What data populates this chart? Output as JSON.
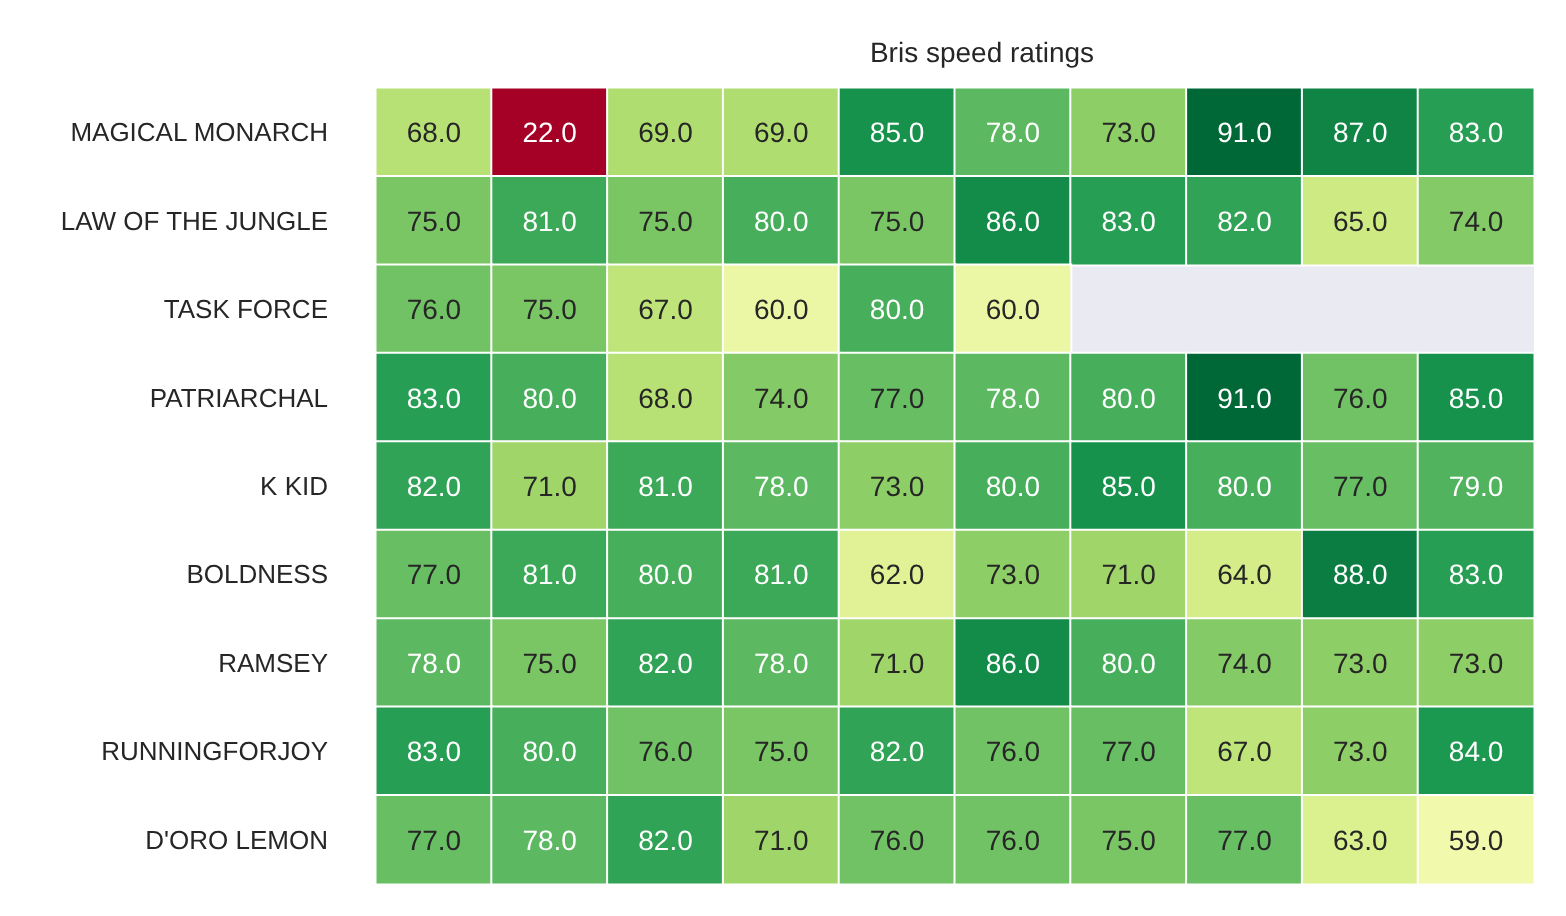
{
  "chart_data": {
    "type": "heatmap",
    "title": "Bris speed ratings",
    "categories": [
      null,
      null,
      null,
      null,
      null,
      null,
      null,
      null,
      null,
      null
    ],
    "y_categories": [
      "MAGICAL MONARCH",
      "LAW OF THE JUNGLE",
      "TASK FORCE",
      "PATRIARCHAL",
      "K KID",
      "BOLDNESS",
      "RAMSEY",
      "RUNNINGFORJOY",
      "D'ORO LEMON"
    ],
    "cells": [
      [
        68,
        22,
        69,
        69,
        85,
        78,
        73,
        91,
        87,
        83
      ],
      [
        75,
        81,
        75,
        80,
        75,
        86,
        83,
        82,
        65,
        74
      ],
      [
        76,
        75,
        67,
        60,
        80,
        60,
        null,
        null,
        null,
        null
      ],
      [
        83,
        80,
        68,
        74,
        77,
        78,
        80,
        91,
        76,
        85
      ],
      [
        82,
        71,
        81,
        78,
        73,
        80,
        85,
        80,
        77,
        79
      ],
      [
        77,
        81,
        80,
        81,
        62,
        73,
        71,
        64,
        88,
        83
      ],
      [
        78,
        75,
        82,
        78,
        71,
        86,
        80,
        74,
        73,
        73
      ],
      [
        83,
        80,
        76,
        75,
        82,
        76,
        77,
        67,
        73,
        84
      ],
      [
        77,
        78,
        82,
        71,
        76,
        76,
        75,
        77,
        63,
        59
      ]
    ],
    "cell_labels": [
      [
        "68.0",
        "22.0",
        "69.0",
        "69.0",
        "85.0",
        "78.0",
        "73.0",
        "91.0",
        "87.0",
        "83.0"
      ],
      [
        "75.0",
        "81.0",
        "75.0",
        "80.0",
        "75.0",
        "86.0",
        "83.0",
        "82.0",
        "65.0",
        "74.0"
      ],
      [
        "76.0",
        "75.0",
        "67.0",
        "60.0",
        "80.0",
        "60.0",
        null,
        null,
        null,
        null
      ],
      [
        "83.0",
        "80.0",
        "68.0",
        "74.0",
        "77.0",
        "78.0",
        "80.0",
        "91.0",
        "76.0",
        "85.0"
      ],
      [
        "82.0",
        "71.0",
        "81.0",
        "78.0",
        "73.0",
        "80.0",
        "85.0",
        "80.0",
        "77.0",
        "79.0"
      ],
      [
        "77.0",
        "81.0",
        "80.0",
        "81.0",
        "62.0",
        "73.0",
        "71.0",
        "64.0",
        "88.0",
        "83.0"
      ],
      [
        "78.0",
        "75.0",
        "82.0",
        "78.0",
        "71.0",
        "86.0",
        "80.0",
        "74.0",
        "73.0",
        "73.0"
      ],
      [
        "83.0",
        "80.0",
        "76.0",
        "75.0",
        "82.0",
        "76.0",
        "77.0",
        "67.0",
        "73.0",
        "84.0"
      ],
      [
        "77.0",
        "78.0",
        "82.0",
        "71.0",
        "76.0",
        "76.0",
        "75.0",
        "77.0",
        "63.0",
        "59.0"
      ]
    ]
  }
}
